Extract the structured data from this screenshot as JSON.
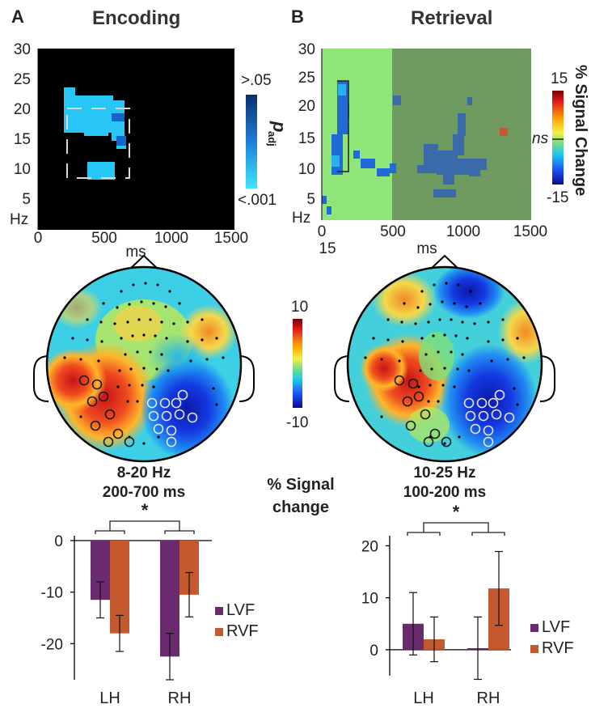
{
  "panels": {
    "a": {
      "letter": "A",
      "title": "Encoding"
    },
    "b": {
      "letter": "B",
      "title": "Retrieval"
    }
  },
  "tf_colorbar_a": {
    "top": ">.05",
    "bottom": "<.001",
    "label": "p",
    "label_sub": "adj"
  },
  "tf_colorbar_b": {
    "top": "15",
    "middle": "ns",
    "bottom": "-15",
    "label": "% Signal Change"
  },
  "topo_colorbar": {
    "top": "10",
    "bottom": "-10",
    "label_line1": "% Signal",
    "label_line2": "change"
  },
  "topo_a": {
    "freq": "8-20 Hz",
    "time": "200-700 ms"
  },
  "topo_b": {
    "freq": "10-25 Hz",
    "time": "100-200 ms"
  },
  "significance": "*",
  "colors": {
    "lvf": "#6a2a6e",
    "rvf": "#c4582e",
    "heatmap_light": "#28c6f4",
    "retrieval_bg_early": "#8fe47a",
    "retrieval_bg_late": "#6e9a60"
  },
  "chart_data": [
    {
      "type": "heatmap",
      "title": "Encoding",
      "xlabel": "ms",
      "ylabel": "Hz",
      "xlim": [
        0,
        1500
      ],
      "ylim": [
        0,
        30
      ],
      "xticks": [
        "0",
        "500",
        "1000",
        "1500"
      ],
      "yticks": [
        "5",
        "10",
        "15",
        "20",
        "25",
        "30"
      ],
      "significant_region": {
        "time_ms": [
          200,
          700
        ],
        "freq_hz": [
          8,
          20
        ]
      },
      "colorbar": "p_adj from <.001 to >.05"
    },
    {
      "type": "heatmap",
      "title": "Retrieval",
      "xlabel": "ms",
      "ylabel": "Hz",
      "xlim": [
        0,
        1500
      ],
      "ylim": [
        0,
        30
      ],
      "xticks": [
        "0",
        "500",
        "1000",
        "1500"
      ],
      "extra_xtick": "15",
      "yticks": [
        "5",
        "10",
        "15",
        "20",
        "25",
        "30"
      ],
      "significant_region": {
        "time_ms": [
          100,
          200
        ],
        "freq_hz": [
          10,
          25
        ]
      },
      "colorbar": "% Signal Change from -15 to 15"
    },
    {
      "type": "bar",
      "title": "Encoding 8-20 Hz, 200-700 ms",
      "categories": [
        "LH",
        "RH"
      ],
      "series": [
        {
          "name": "LVF",
          "values": [
            -11.5,
            -22.5
          ],
          "errors": [
            3.5,
            4.5
          ]
        },
        {
          "name": "RVF",
          "values": [
            -18,
            -10.5
          ],
          "errors": [
            3.5,
            4.3
          ]
        }
      ],
      "yticks": [
        "0",
        "-10",
        "-20"
      ],
      "ylim": [
        -27,
        0
      ],
      "significance": "*"
    },
    {
      "type": "bar",
      "title": "Retrieval 10-25 Hz, 100-200 ms",
      "categories": [
        "LH",
        "RH"
      ],
      "series": [
        {
          "name": "LVF",
          "values": [
            5,
            0.3
          ],
          "errors": [
            6,
            6
          ]
        },
        {
          "name": "RVF",
          "values": [
            2,
            11.8
          ],
          "errors": [
            4.3,
            7.1
          ]
        }
      ],
      "yticks": [
        "0",
        "10",
        "20"
      ],
      "ylim": [
        -5,
        21
      ],
      "significance": "*"
    }
  ]
}
